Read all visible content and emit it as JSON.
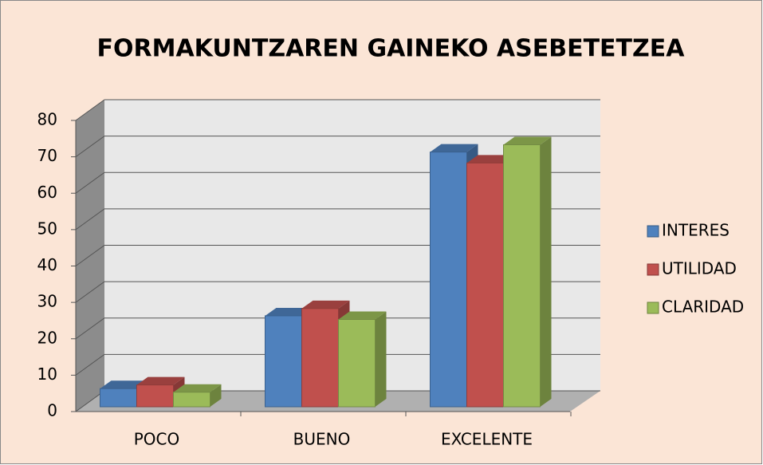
{
  "chart_data": {
    "type": "bar3d",
    "title": "FORMAKUNTZAREN GAINEKO ASEBETETZEA",
    "categories": [
      "POCO",
      "BUENO",
      "EXCELENTE"
    ],
    "series": [
      {
        "name": "INTERES",
        "color": "#4F81BD",
        "values": [
          5,
          25,
          70
        ]
      },
      {
        "name": "UTILIDAD",
        "color": "#C0504D",
        "values": [
          6,
          27,
          67
        ]
      },
      {
        "name": "CLARIDAD",
        "color": "#9BBB59",
        "values": [
          4,
          24,
          72
        ]
      }
    ],
    "ylim": [
      0,
      80
    ],
    "yticks": [
      0,
      10,
      20,
      30,
      40,
      50,
      60,
      70,
      80
    ],
    "grid": true,
    "legend": "right"
  }
}
